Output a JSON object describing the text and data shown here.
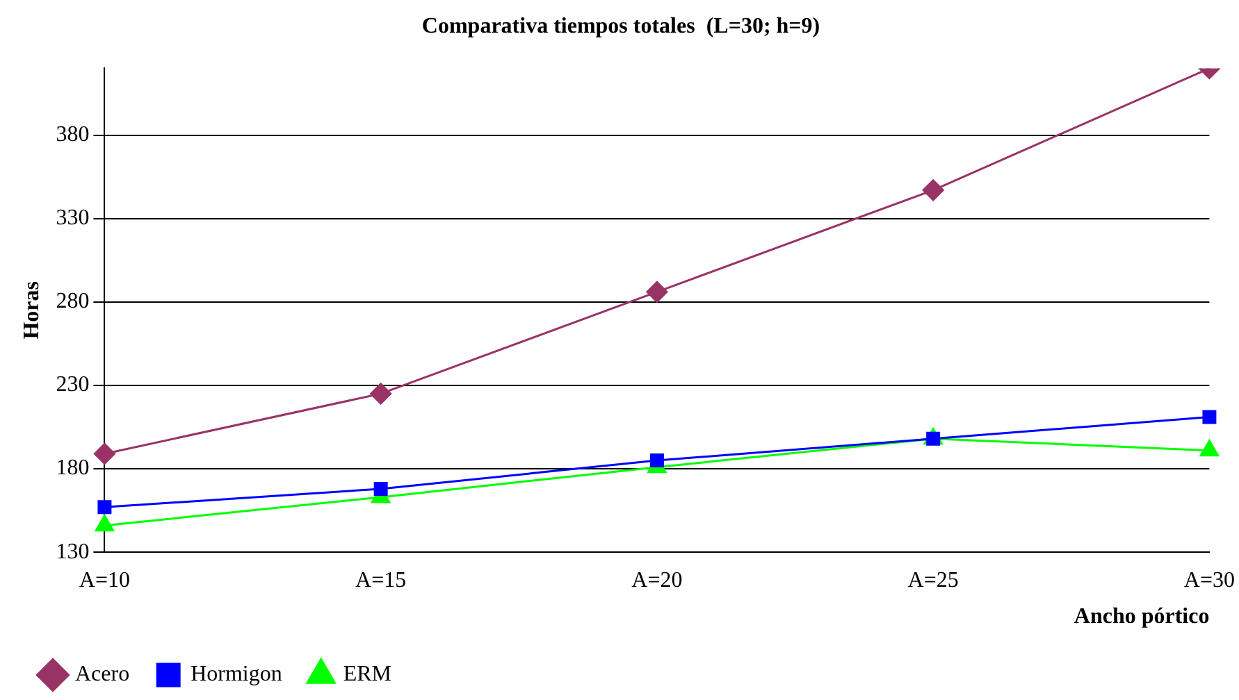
{
  "chart_data": {
    "type": "line",
    "title": "Comparativa tiempos totales  (L=30; h=9)",
    "xlabel": "Ancho pórtico",
    "ylabel": "Horas",
    "categories": [
      "A=10",
      "A=15",
      "A=20",
      "A=25",
      "A=30"
    ],
    "series": [
      {
        "name": "Acero",
        "color": "#993366",
        "marker": "diamond",
        "values": [
          189,
          225,
          286,
          347,
          420
        ]
      },
      {
        "name": "Hormigon",
        "color": "#0000ff",
        "marker": "square",
        "values": [
          157,
          168,
          185,
          198,
          211
        ]
      },
      {
        "name": "ERM",
        "color": "#00ff00",
        "marker": "triangle",
        "values": [
          146,
          163,
          181,
          198,
          191
        ]
      }
    ],
    "ylim": [
      130,
      420
    ],
    "yticks": [
      130,
      180,
      230,
      280,
      330,
      380
    ],
    "grid": "y",
    "legend": "bottom left",
    "line_style": "solid"
  }
}
